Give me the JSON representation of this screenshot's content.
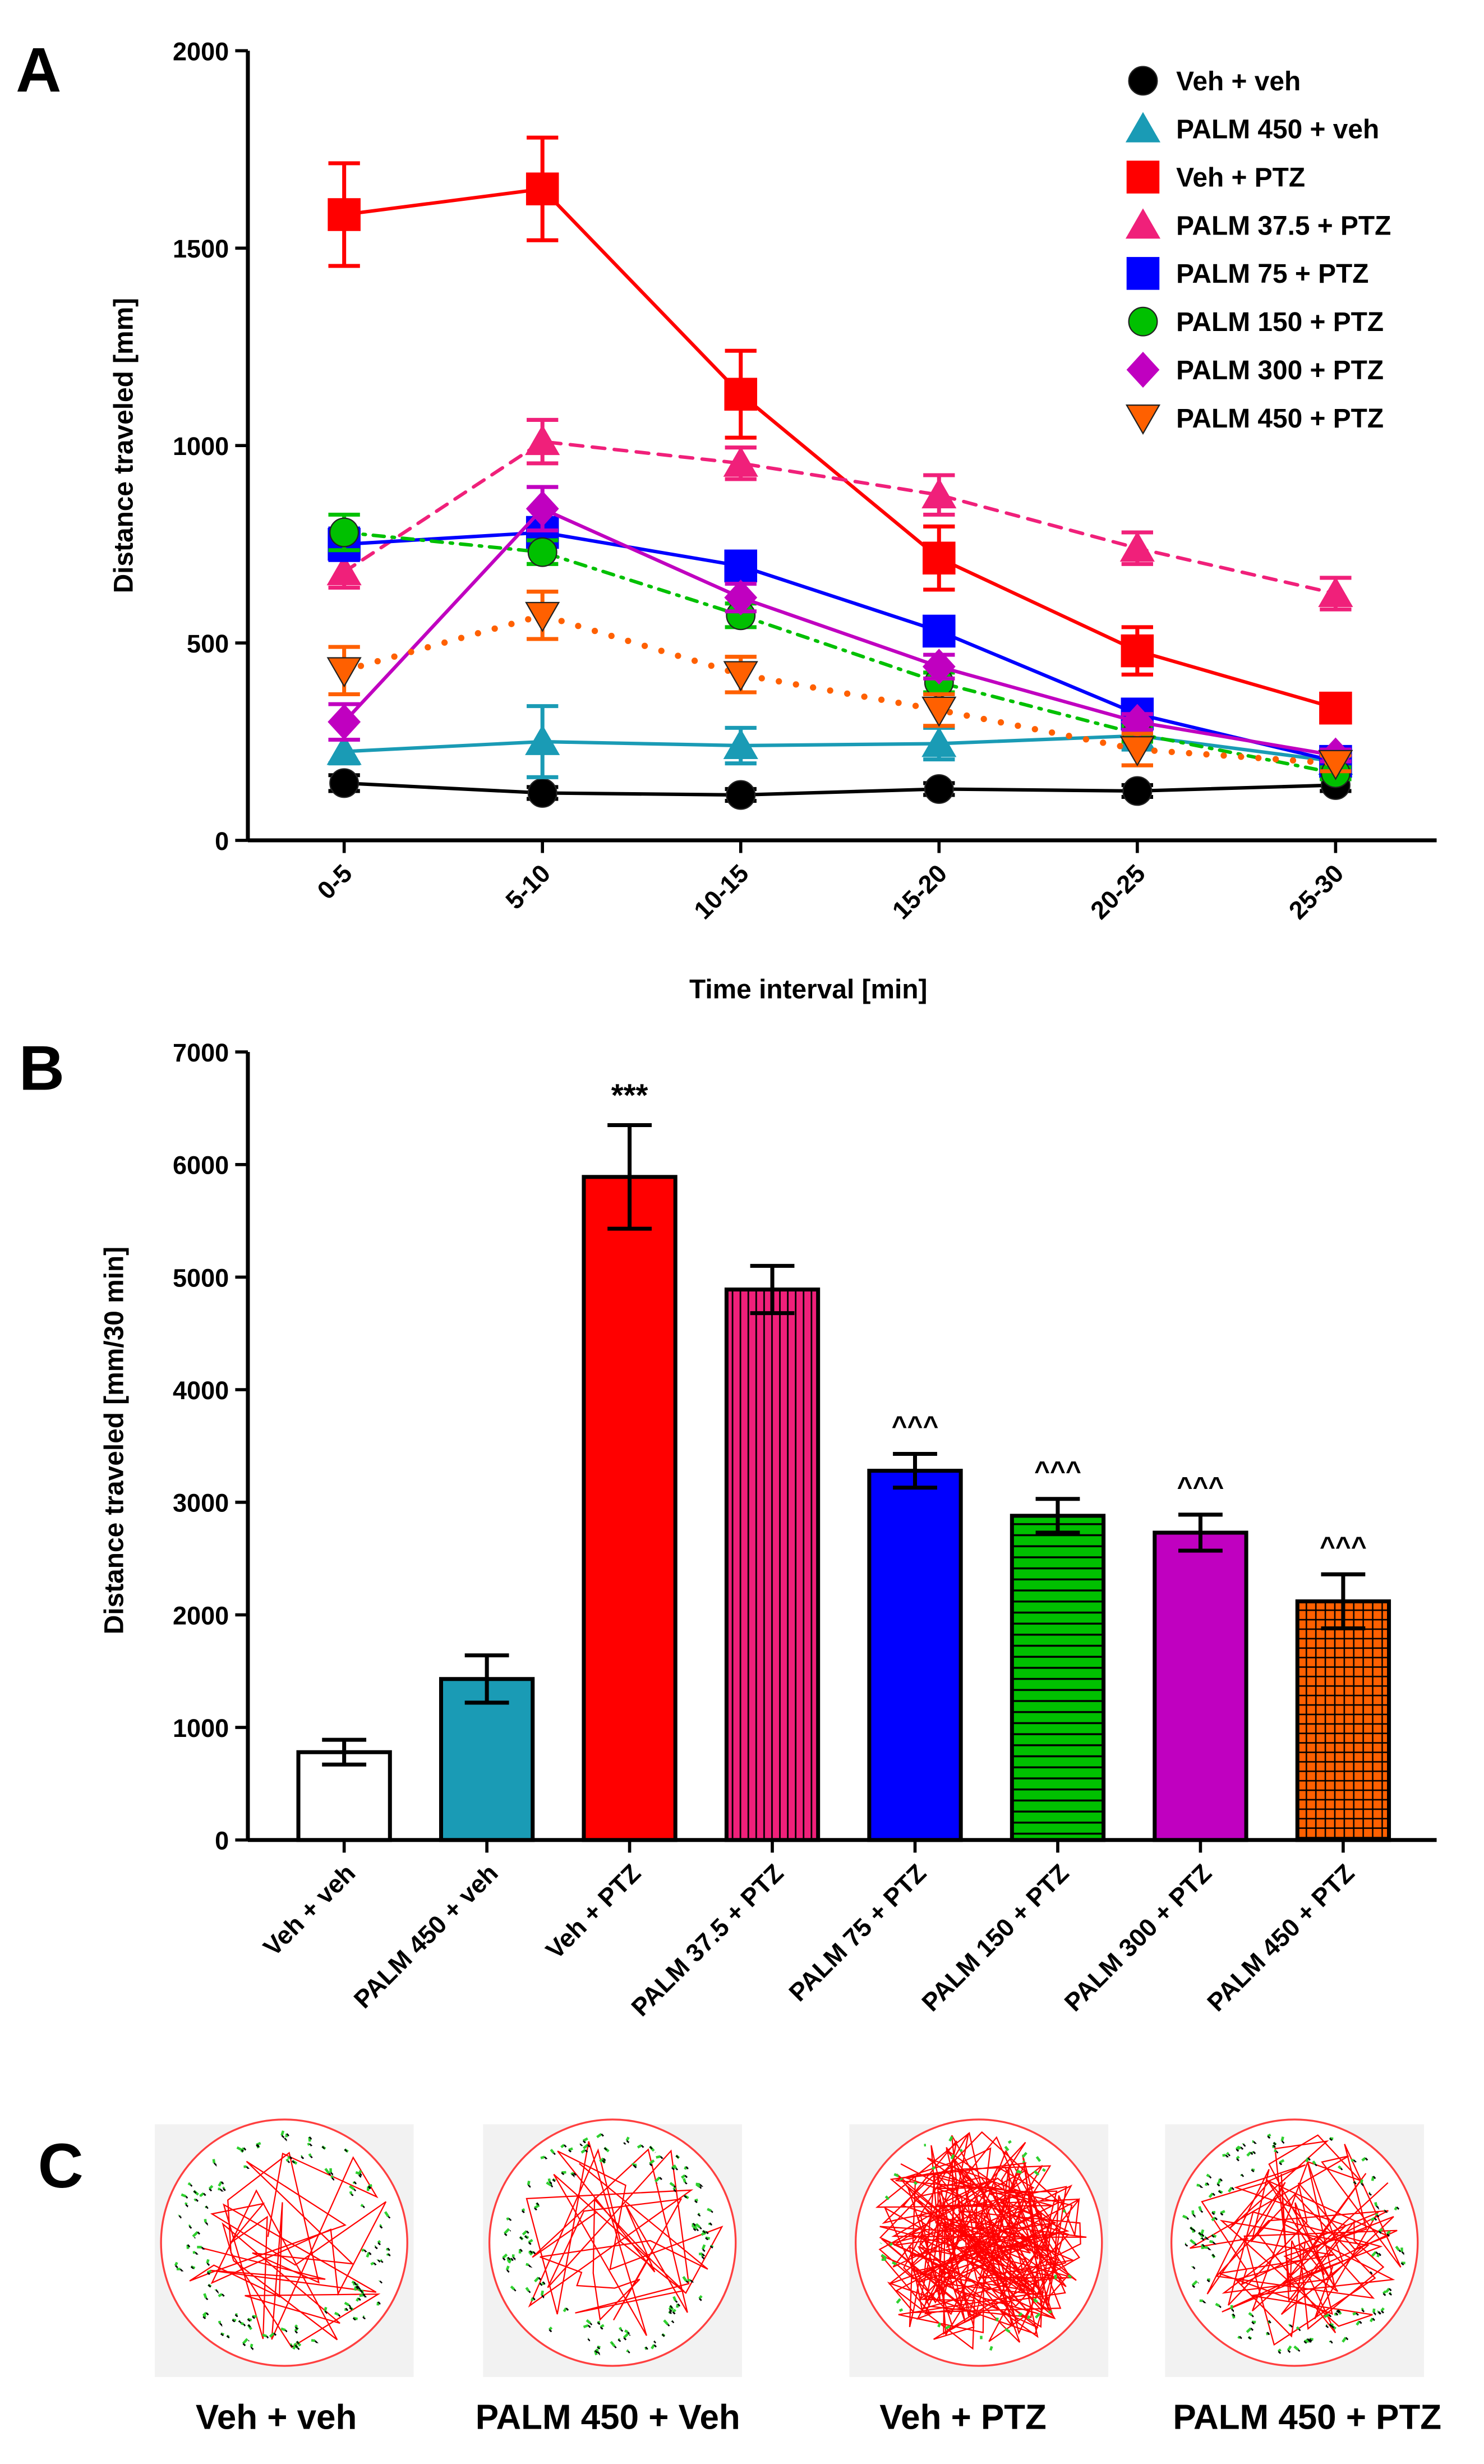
{
  "panel_labels": [
    "A",
    "B",
    "C"
  ],
  "chart_data": [
    {
      "type": "line",
      "panel": "A",
      "xlabel": "Time interval [min]",
      "ylabel": "Distance traveled [mm]",
      "categories": [
        "0-5",
        "5-10",
        "10-15",
        "15-20",
        "20-25",
        "25-30"
      ],
      "ylim": [
        0,
        2000
      ],
      "yticks": [
        0,
        500,
        1000,
        1500,
        2000
      ],
      "legend_position": "top-right",
      "series": [
        {
          "name": "Veh + veh",
          "color": "#000000",
          "marker": "circle",
          "dash": "solid",
          "values": [
            145,
            120,
            115,
            130,
            125,
            140
          ],
          "errors": [
            20,
            15,
            15,
            15,
            15,
            15
          ]
        },
        {
          "name": "PALM 450 + veh",
          "color": "#1a9bb5",
          "marker": "triangle-up",
          "dash": "solid",
          "values": [
            225,
            250,
            240,
            245,
            265,
            200
          ],
          "errors": [
            30,
            90,
            45,
            40,
            35,
            30
          ]
        },
        {
          "name": "Veh + PTZ",
          "color": "#ff0000",
          "marker": "square",
          "dash": "solid",
          "values": [
            1585,
            1650,
            1130,
            715,
            480,
            335
          ],
          "errors": [
            130,
            130,
            110,
            80,
            60,
            30
          ]
        },
        {
          "name": "PALM 37.5 + PTZ",
          "color": "#f0207a",
          "marker": "triangle-up",
          "dash": "dash",
          "values": [
            680,
            1010,
            955,
            875,
            740,
            625
          ],
          "errors": [
            40,
            55,
            40,
            50,
            40,
            40
          ]
        },
        {
          "name": "PALM 75 + PTZ",
          "color": "#0000ff",
          "marker": "square",
          "dash": "solid",
          "values": [
            750,
            780,
            695,
            530,
            320,
            200
          ],
          "errors": [
            40,
            30,
            30,
            30,
            25,
            20
          ]
        },
        {
          "name": "PALM 150 + PTZ",
          "color": "#00c000",
          "marker": "circle",
          "dash": "dashdot",
          "values": [
            780,
            730,
            570,
            400,
            270,
            170
          ],
          "errors": [
            45,
            30,
            30,
            25,
            20,
            15
          ]
        },
        {
          "name": "PALM 300 + PTZ",
          "color": "#c000c0",
          "marker": "diamond",
          "dash": "solid",
          "values": [
            300,
            840,
            615,
            440,
            300,
            215
          ],
          "errors": [
            45,
            55,
            35,
            30,
            20,
            15
          ]
        },
        {
          "name": "PALM 450 + PTZ",
          "color": "#ff6000",
          "marker": "triangle-down",
          "dash": "dot",
          "values": [
            430,
            570,
            420,
            330,
            230,
            195
          ],
          "errors": [
            60,
            60,
            45,
            40,
            40,
            20
          ]
        }
      ]
    },
    {
      "type": "bar",
      "panel": "B",
      "xlabel": "",
      "ylabel": "Distance traveled [mm/30 min]",
      "categories": [
        "Veh + veh",
        "PALM 450 + veh",
        "Veh + PTZ",
        "PALM 37.5 + PTZ",
        "PALM 75 + PTZ",
        "PALM 150 + PTZ",
        "PALM 300 + PTZ",
        "PALM 450 + PTZ"
      ],
      "values": [
        780,
        1430,
        5890,
        4890,
        3280,
        2880,
        2730,
        2120
      ],
      "errors": [
        110,
        210,
        460,
        210,
        150,
        150,
        160,
        240
      ],
      "colors": [
        "#ffffff",
        "#1a9bb5",
        "#ff0000",
        "#f0207a",
        "#0000ff",
        "#00c000",
        "#c000c0",
        "#ff6000"
      ],
      "patterns": [
        "none",
        "none",
        "none",
        "vertical",
        "none",
        "horizontal",
        "none",
        "grid"
      ],
      "annotations": [
        "",
        "",
        "***",
        "",
        "^^^",
        "^^^",
        "^^^",
        "^^^"
      ],
      "ylim": [
        0,
        7000
      ],
      "yticks": [
        0,
        1000,
        2000,
        3000,
        4000,
        5000,
        6000,
        7000
      ]
    }
  ],
  "panel_c": {
    "tracks": [
      {
        "label": "Veh + veh",
        "activity": "low"
      },
      {
        "label": "PALM 450 + Veh",
        "activity": "low"
      },
      {
        "label": "Veh + PTZ",
        "activity": "high"
      },
      {
        "label": "PALM 450 + PTZ",
        "activity": "medium"
      }
    ]
  }
}
